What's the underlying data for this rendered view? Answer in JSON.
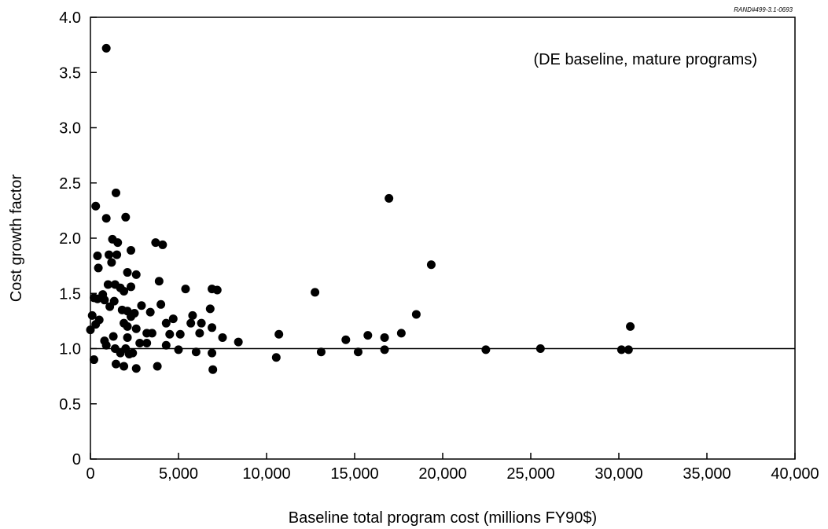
{
  "chart_data": {
    "type": "scatter",
    "title": "",
    "xlabel": "Baseline total program cost (millions FY90$)",
    "ylabel": "Cost growth factor",
    "annotation": "(DE baseline, mature programs)",
    "reference_code": "RAND#499-3.1-0693",
    "xlim": [
      0,
      40000
    ],
    "ylim": [
      0,
      4.0
    ],
    "x_ticks": [
      0,
      5000,
      10000,
      15000,
      20000,
      25000,
      30000,
      35000,
      40000
    ],
    "x_tick_labels": [
      "0",
      "5,000",
      "10,000",
      "15,000",
      "20,000",
      "25,000",
      "30,000",
      "35,000",
      "40,000"
    ],
    "y_ticks": [
      0,
      0.5,
      1.0,
      1.5,
      2.0,
      2.5,
      3.0,
      3.5,
      4.0
    ],
    "y_tick_labels": [
      "0",
      "0.5",
      "1.0",
      "1.5",
      "2.0",
      "2.5",
      "3.0",
      "3.5",
      "4.0"
    ],
    "reference_line_y": 1.0,
    "grid": false,
    "points": [
      [
        900,
        3.72
      ],
      [
        1450,
        2.41
      ],
      [
        300,
        2.29
      ],
      [
        2000,
        2.19
      ],
      [
        900,
        2.18
      ],
      [
        16950,
        2.36
      ],
      [
        1250,
        1.99
      ],
      [
        1550,
        1.96
      ],
      [
        3700,
        1.96
      ],
      [
        4100,
        1.94
      ],
      [
        2300,
        1.89
      ],
      [
        400,
        1.84
      ],
      [
        1050,
        1.85
      ],
      [
        1500,
        1.85
      ],
      [
        1200,
        1.78
      ],
      [
        19350,
        1.76
      ],
      [
        450,
        1.73
      ],
      [
        2100,
        1.69
      ],
      [
        2600,
        1.67
      ],
      [
        3900,
        1.61
      ],
      [
        1000,
        1.58
      ],
      [
        1400,
        1.58
      ],
      [
        2300,
        1.56
      ],
      [
        1700,
        1.55
      ],
      [
        5400,
        1.54
      ],
      [
        6900,
        1.54
      ],
      [
        7200,
        1.53
      ],
      [
        1900,
        1.52
      ],
      [
        12750,
        1.51
      ],
      [
        700,
        1.49
      ],
      [
        200,
        1.46
      ],
      [
        400,
        1.45
      ],
      [
        800,
        1.44
      ],
      [
        1350,
        1.43
      ],
      [
        1100,
        1.38
      ],
      [
        2900,
        1.39
      ],
      [
        4000,
        1.4
      ],
      [
        1800,
        1.35
      ],
      [
        2100,
        1.34
      ],
      [
        2500,
        1.32
      ],
      [
        3400,
        1.33
      ],
      [
        6800,
        1.36
      ],
      [
        100,
        1.3
      ],
      [
        2300,
        1.29
      ],
      [
        5800,
        1.3
      ],
      [
        18500,
        1.31
      ],
      [
        4700,
        1.27
      ],
      [
        500,
        1.26
      ],
      [
        300,
        1.22
      ],
      [
        1900,
        1.23
      ],
      [
        4300,
        1.23
      ],
      [
        5700,
        1.23
      ],
      [
        6300,
        1.23
      ],
      [
        6900,
        1.19
      ],
      [
        2100,
        1.2
      ],
      [
        2600,
        1.18
      ],
      [
        30650,
        1.2
      ],
      [
        0,
        1.17
      ],
      [
        3200,
        1.14
      ],
      [
        3500,
        1.14
      ],
      [
        6200,
        1.14
      ],
      [
        4500,
        1.13
      ],
      [
        5100,
        1.13
      ],
      [
        10700,
        1.13
      ],
      [
        15750,
        1.12
      ],
      [
        17650,
        1.14
      ],
      [
        1300,
        1.11
      ],
      [
        2100,
        1.1
      ],
      [
        7500,
        1.1
      ],
      [
        16700,
        1.1
      ],
      [
        14500,
        1.08
      ],
      [
        800,
        1.07
      ],
      [
        2800,
        1.05
      ],
      [
        3200,
        1.05
      ],
      [
        4300,
        1.03
      ],
      [
        8400,
        1.06
      ],
      [
        900,
        1.03
      ],
      [
        1400,
        1.0
      ],
      [
        2000,
        1.0
      ],
      [
        5000,
        0.99
      ],
      [
        16700,
        0.99
      ],
      [
        22450,
        0.99
      ],
      [
        25550,
        1.0
      ],
      [
        30150,
        0.99
      ],
      [
        30550,
        0.99
      ],
      [
        1700,
        0.96
      ],
      [
        2400,
        0.96
      ],
      [
        2200,
        0.95
      ],
      [
        6000,
        0.97
      ],
      [
        6900,
        0.96
      ],
      [
        13100,
        0.97
      ],
      [
        15200,
        0.97
      ],
      [
        10550,
        0.92
      ],
      [
        200,
        0.9
      ],
      [
        1450,
        0.86
      ],
      [
        1900,
        0.84
      ],
      [
        2600,
        0.82
      ],
      [
        3800,
        0.84
      ],
      [
        6950,
        0.81
      ]
    ]
  }
}
